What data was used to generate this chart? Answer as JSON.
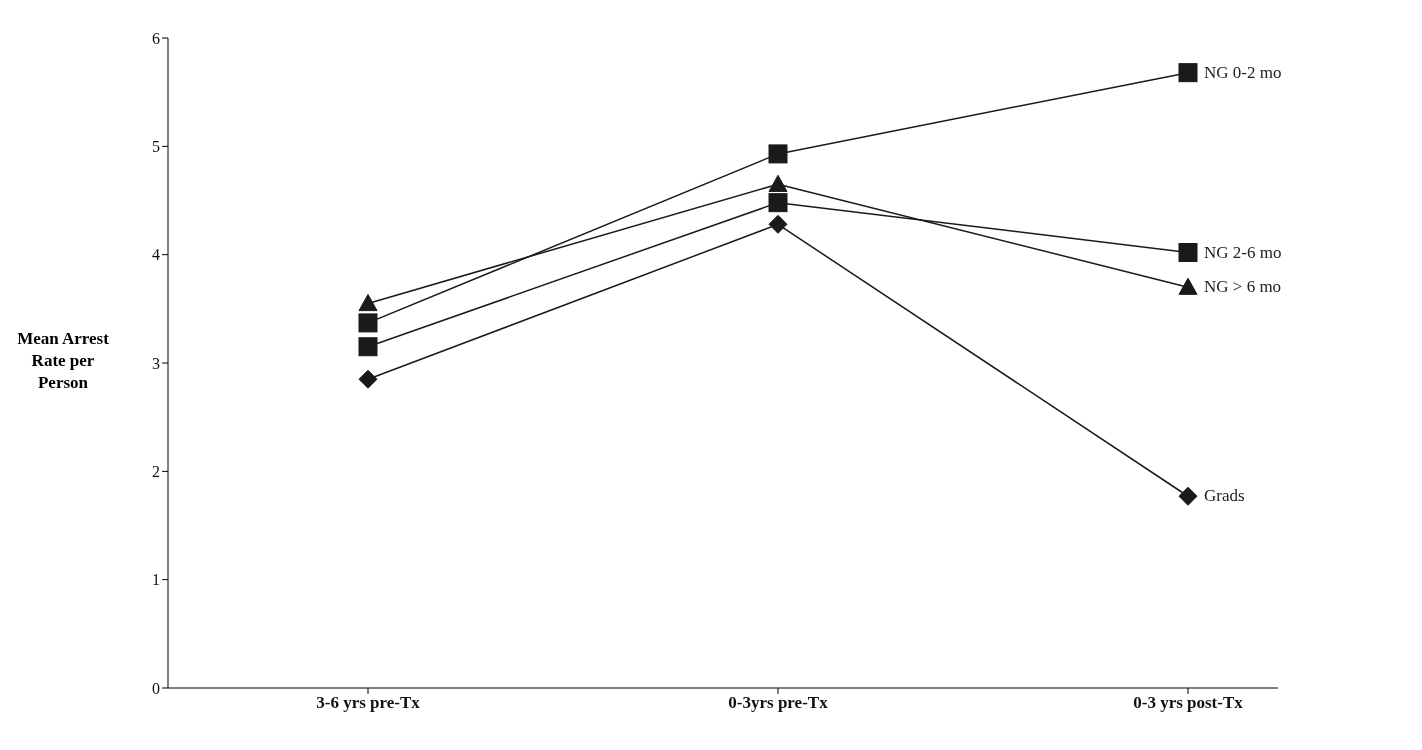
{
  "chart_data": {
    "type": "line",
    "ylabel": "Mean Arrest Rate per Person",
    "categories": [
      "3-6 yrs pre-Tx",
      "0-3yrs pre-Tx",
      "0-3 yrs post-Tx"
    ],
    "series": [
      {
        "name": "NG 0-2 mo",
        "color": "#1a1a1a",
        "marker": "square",
        "values": [
          3.37,
          4.93,
          5.68
        ]
      },
      {
        "name": "NG > 6 mo",
        "color": "#1a1a1a",
        "marker": "triangle",
        "values": [
          3.55,
          4.65,
          3.7
        ]
      },
      {
        "name": "NG 2-6 mo",
        "color": "#1a1a1a",
        "marker": "square",
        "values": [
          3.15,
          4.48,
          4.02
        ]
      },
      {
        "name": "Grads",
        "color": "#1a1a1a",
        "marker": "diamond",
        "values": [
          2.85,
          4.28,
          1.77
        ]
      }
    ],
    "ylim": [
      0,
      6
    ],
    "yticks": [
      0,
      1,
      2,
      3,
      4,
      5,
      6
    ],
    "grid": false
  }
}
